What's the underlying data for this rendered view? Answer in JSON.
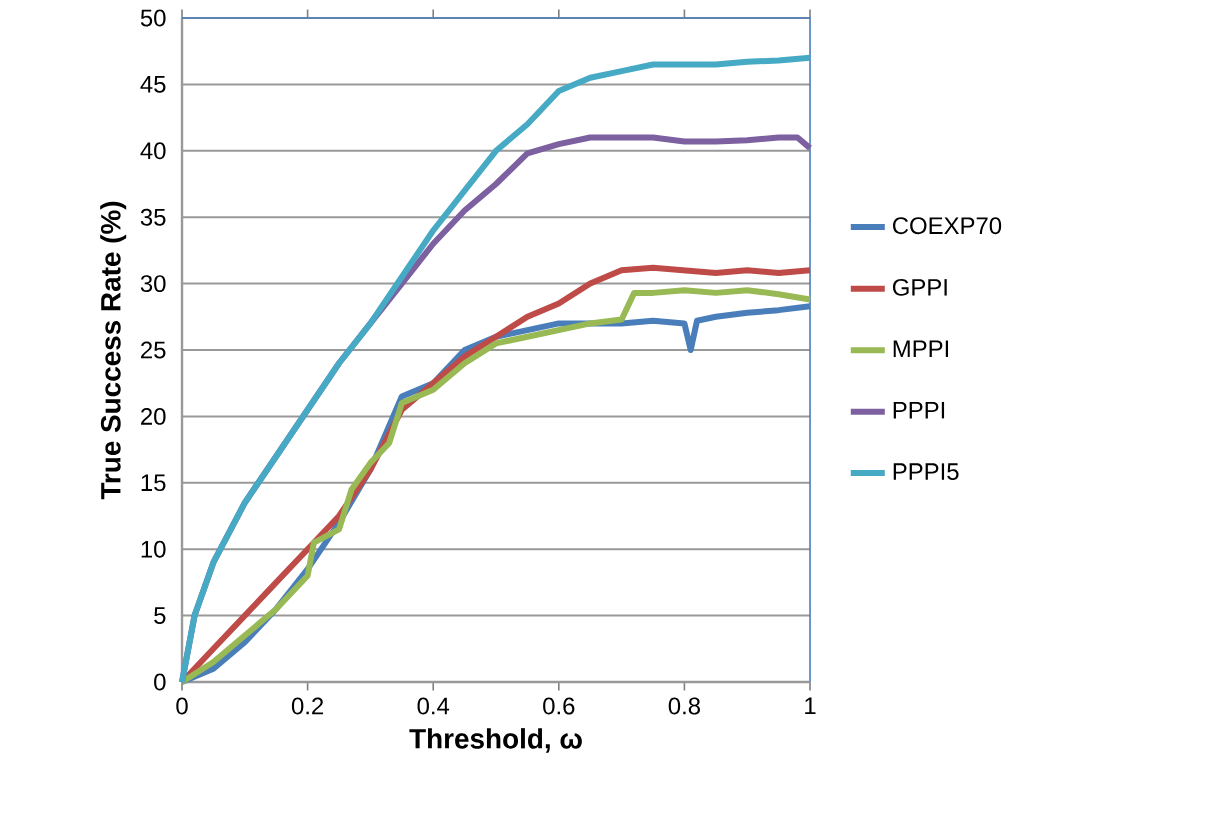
{
  "chart_data": {
    "type": "line",
    "xlabel": "Threshold, ω",
    "ylabel": "True Success Rate (%)",
    "xlim": [
      0,
      1
    ],
    "ylim": [
      0,
      50
    ],
    "xticks": [
      0,
      0.2,
      0.4,
      0.6,
      0.8,
      1
    ],
    "yticks": [
      0,
      5,
      10,
      15,
      20,
      25,
      30,
      35,
      40,
      45,
      50
    ],
    "grid": "y",
    "legend": "right",
    "marker": "none",
    "line_style": "solid",
    "series": [
      {
        "name": "COEXP70",
        "color": "#4a7ebb",
        "x": [
          0,
          0.05,
          0.1,
          0.15,
          0.2,
          0.25,
          0.3,
          0.35,
          0.4,
          0.45,
          0.5,
          0.55,
          0.6,
          0.65,
          0.7,
          0.75,
          0.8,
          0.81,
          0.82,
          0.85,
          0.9,
          0.95,
          1
        ],
        "values": [
          0,
          1,
          3,
          5.5,
          8.5,
          12,
          16,
          21.5,
          22.5,
          25,
          26,
          26.5,
          27,
          27,
          27,
          27.2,
          27,
          25,
          27.2,
          27.5,
          27.8,
          28,
          28.3
        ]
      },
      {
        "name": "GPPI",
        "color": "#be4b48",
        "x": [
          0,
          0.05,
          0.1,
          0.15,
          0.2,
          0.25,
          0.3,
          0.35,
          0.4,
          0.45,
          0.5,
          0.55,
          0.6,
          0.65,
          0.7,
          0.75,
          0.8,
          0.85,
          0.9,
          0.95,
          1
        ],
        "values": [
          0,
          2.5,
          5,
          7.5,
          10,
          12.5,
          16,
          20.5,
          22.5,
          24.5,
          26,
          27.5,
          28.5,
          30,
          31,
          31.2,
          31,
          30.8,
          31,
          30.8,
          31
        ]
      },
      {
        "name": "MPPI",
        "color": "#98b954",
        "x": [
          0,
          0.05,
          0.1,
          0.15,
          0.2,
          0.21,
          0.25,
          0.27,
          0.3,
          0.33,
          0.35,
          0.4,
          0.45,
          0.5,
          0.55,
          0.6,
          0.65,
          0.7,
          0.72,
          0.75,
          0.8,
          0.85,
          0.9,
          0.95,
          1
        ],
        "values": [
          0,
          1.5,
          3.5,
          5.5,
          8,
          10.5,
          11.5,
          14.5,
          16.5,
          18,
          21,
          22,
          24,
          25.5,
          26,
          26.5,
          27,
          27.3,
          29.3,
          29.3,
          29.5,
          29.3,
          29.5,
          29.2,
          28.8
        ]
      },
      {
        "name": "PPPI",
        "color": "#7d60a0",
        "x": [
          0,
          0.02,
          0.05,
          0.1,
          0.15,
          0.2,
          0.25,
          0.3,
          0.35,
          0.4,
          0.45,
          0.5,
          0.55,
          0.6,
          0.65,
          0.7,
          0.75,
          0.8,
          0.85,
          0.9,
          0.95,
          0.98,
          1
        ],
        "values": [
          0,
          5,
          9,
          13.5,
          17,
          20.5,
          24,
          27,
          30,
          33,
          35.5,
          37.5,
          39.8,
          40.5,
          41,
          41,
          41,
          40.7,
          40.7,
          40.8,
          41,
          41,
          40.2
        ]
      },
      {
        "name": "PPPI5",
        "color": "#46aac5",
        "x": [
          0,
          0.02,
          0.05,
          0.1,
          0.15,
          0.2,
          0.25,
          0.3,
          0.35,
          0.4,
          0.45,
          0.5,
          0.55,
          0.6,
          0.65,
          0.7,
          0.75,
          0.8,
          0.85,
          0.9,
          0.95,
          1
        ],
        "values": [
          0,
          5,
          9,
          13.5,
          17,
          20.5,
          24,
          27,
          30.5,
          34,
          37,
          40,
          42,
          44.5,
          45.5,
          46,
          46.5,
          46.5,
          46.5,
          46.7,
          46.8,
          47
        ]
      }
    ]
  }
}
